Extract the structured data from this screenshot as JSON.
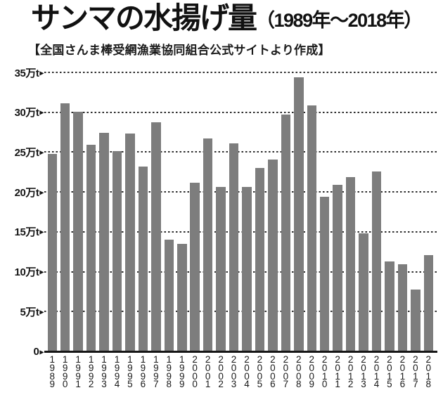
{
  "title": {
    "main": "サンマの水揚げ量",
    "range": "（1989年～2018年）"
  },
  "subtitle": "【全国さんま棒受網漁業協同組合公式サイトより作成】",
  "chart_data": {
    "type": "bar",
    "title": "サンマの水揚げ量（1989年～2018年）",
    "source_note": "全国さんま棒受網漁業協同組合公式サイトより作成",
    "unit": "万t",
    "categories": [
      "1989",
      "1990",
      "1991",
      "1992",
      "1993",
      "1994",
      "1995",
      "1996",
      "1997",
      "1998",
      "1999",
      "2000",
      "2001",
      "2002",
      "2003",
      "2004",
      "2005",
      "2006",
      "2007",
      "2008",
      "2009",
      "2010",
      "2011",
      "2012",
      "2013",
      "2014",
      "2015",
      "2016",
      "2017",
      "2018"
    ],
    "values": [
      24.8,
      31.1,
      30.1,
      25.9,
      27.4,
      25.1,
      27.3,
      23.2,
      28.7,
      14.0,
      13.5,
      21.2,
      26.7,
      20.6,
      26.1,
      20.6,
      23.0,
      24.1,
      29.7,
      34.4,
      30.9,
      19.4,
      20.9,
      21.9,
      14.8,
      22.6,
      11.3,
      10.9,
      7.8,
      12.1
    ],
    "ylim": [
      0,
      35
    ],
    "yticks": [
      {
        "value": 35,
        "label": "35万t"
      },
      {
        "value": 30,
        "label": "30万t"
      },
      {
        "value": 25,
        "label": "25万t"
      },
      {
        "value": 20,
        "label": "20万t"
      },
      {
        "value": 15,
        "label": "15万t"
      },
      {
        "value": 10,
        "label": "10万t"
      },
      {
        "value": 5,
        "label": "5万t"
      },
      {
        "value": 0,
        "label": "0"
      }
    ],
    "tick_arrow": "▶",
    "grid": "horizontal-dashed",
    "legend": "none",
    "xlabel": "",
    "ylabel": "万t",
    "bar_color": "#7d7d7d"
  },
  "colors": {
    "background": "#ffffff",
    "text": "#161616",
    "bar": "#7d7d7d",
    "axis": "#161616"
  }
}
